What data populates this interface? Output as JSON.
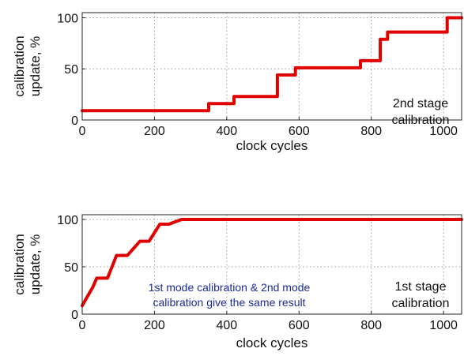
{
  "chart_data": [
    {
      "type": "line",
      "xlabel": "clock cycles",
      "ylabel": [
        "calibration",
        "update, %"
      ],
      "xlim": [
        0,
        1050
      ],
      "ylim": [
        0,
        105
      ],
      "xticks": [
        0,
        200,
        400,
        600,
        800,
        1000
      ],
      "yticks": [
        0,
        50,
        100
      ],
      "grid": true,
      "annotation": [
        "2nd stage",
        "calibration"
      ],
      "series": [
        {
          "color": "#e00000",
          "step": true,
          "points": [
            [
              0,
              9
            ],
            [
              350,
              9
            ],
            [
              350,
              16
            ],
            [
              420,
              16
            ],
            [
              420,
              23
            ],
            [
              540,
              23
            ],
            [
              540,
              44
            ],
            [
              590,
              44
            ],
            [
              590,
              51
            ],
            [
              770,
              51
            ],
            [
              770,
              58
            ],
            [
              825,
              58
            ],
            [
              825,
              79
            ],
            [
              845,
              79
            ],
            [
              845,
              86
            ],
            [
              1010,
              86
            ],
            [
              1010,
              100
            ],
            [
              1050,
              100
            ]
          ]
        }
      ]
    },
    {
      "type": "line",
      "xlabel": "clock cycles",
      "ylabel": [
        "calibration",
        "update, %"
      ],
      "xlim": [
        0,
        1050
      ],
      "ylim": [
        0,
        105
      ],
      "xticks": [
        0,
        200,
        400,
        600,
        800,
        1000
      ],
      "yticks": [
        0,
        50,
        100
      ],
      "grid": true,
      "annotation": [
        "1st stage",
        "calibration"
      ],
      "note": [
        "1st mode calibration & 2nd mode",
        "calibration give the same result"
      ],
      "series": [
        {
          "color": "#e00000",
          "step": false,
          "points": [
            [
              0,
              9
            ],
            [
              30,
              29
            ],
            [
              40,
              38
            ],
            [
              70,
              38
            ],
            [
              95,
              62
            ],
            [
              125,
              62
            ],
            [
              160,
              77
            ],
            [
              185,
              77
            ],
            [
              215,
              95
            ],
            [
              240,
              95
            ],
            [
              275,
              100
            ],
            [
              1050,
              100
            ]
          ]
        }
      ]
    }
  ]
}
